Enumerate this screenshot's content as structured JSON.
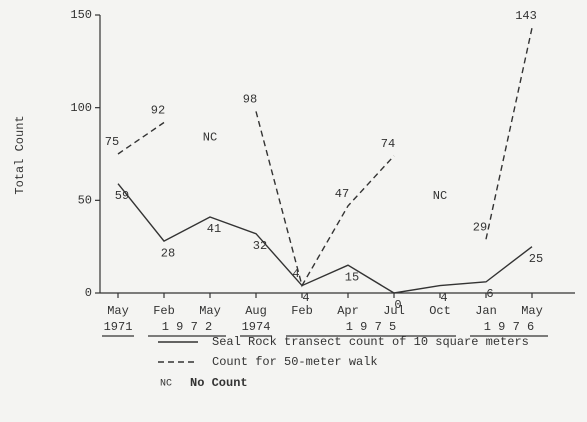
{
  "chart_data": {
    "type": "line",
    "y_label": "Total Count",
    "categories": [
      "May",
      "Feb",
      "May",
      "Aug",
      "Feb",
      "Apr",
      "Jul",
      "Oct",
      "Jan",
      "May"
    ],
    "year_groups": [
      {
        "label": "1971",
        "span": 1
      },
      {
        "label": "1 9 7 2",
        "span": 2
      },
      {
        "label": "1974",
        "span": 1
      },
      {
        "label": "1 9 7 5",
        "span": 4
      },
      {
        "label": "1 9 7 6",
        "span": 2
      }
    ],
    "series": [
      {
        "name": "Seal Rock transect count of 10 square meters",
        "color": "#333333",
        "dash": false,
        "values": [
          59,
          28,
          41,
          32,
          4,
          15,
          0,
          4,
          6,
          25
        ]
      },
      {
        "name": "Count for 50-meter walk",
        "color": "#333333",
        "dash": true,
        "values": [
          75,
          92,
          null,
          98,
          4,
          47,
          74,
          null,
          29,
          143
        ]
      }
    ],
    "annotations": [
      "NC",
      "NC"
    ],
    "note_key": "NC",
    "note_text": "No Count",
    "ylim": [
      0,
      150
    ],
    "yticks": [
      0,
      50,
      100,
      150
    ]
  }
}
